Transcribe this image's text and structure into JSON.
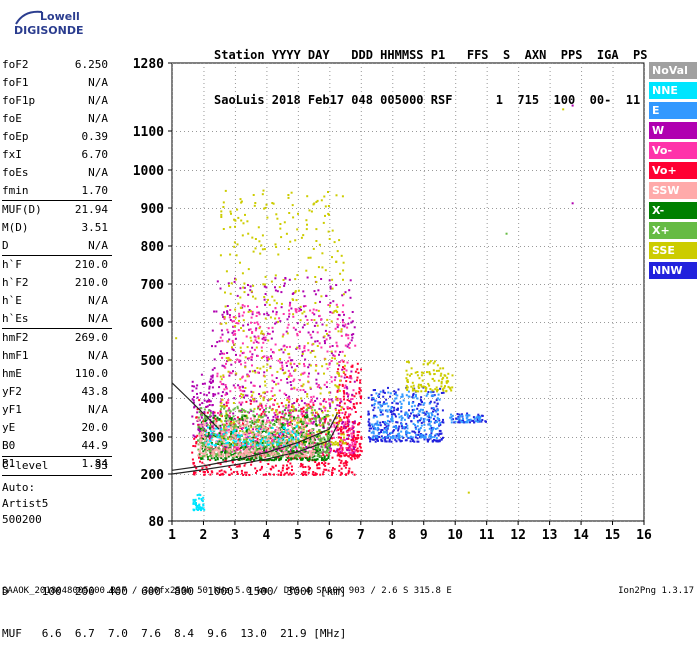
{
  "logo": {
    "line1": "Lowell",
    "line2": "DIGISONDE"
  },
  "header": {
    "line1": "Station YYYY DAY   DDD HHMMSS P1   FFS  S  AXN  PPS  IGA  PS",
    "line2": "SaoLuis 2018 Feb17 048 005000 RSF      1  715  100  00-  11"
  },
  "params_group1": [
    {
      "label": "foF2",
      "value": "6.250"
    },
    {
      "label": "foF1",
      "value": "N/A"
    },
    {
      "label": "foF1p",
      "value": "N/A"
    },
    {
      "label": "foE",
      "value": "N/A"
    },
    {
      "label": "foEp",
      "value": "0.39"
    },
    {
      "label": "fxI",
      "value": "6.70"
    },
    {
      "label": "foEs",
      "value": "N/A"
    },
    {
      "label": "fmin",
      "value": "1.70"
    }
  ],
  "params_group2": [
    {
      "label": "MUF(D)",
      "value": "21.94"
    },
    {
      "label": "M(D)",
      "value": "3.51"
    },
    {
      "label": "D",
      "value": "N/A"
    }
  ],
  "params_group3": [
    {
      "label": "h`F",
      "value": "210.0"
    },
    {
      "label": "h`F2",
      "value": "210.0"
    },
    {
      "label": "h`E",
      "value": "N/A"
    },
    {
      "label": "h`Es",
      "value": "N/A"
    }
  ],
  "params_group4": [
    {
      "label": "hmF2",
      "value": "269.0"
    },
    {
      "label": "hmF1",
      "value": "N/A"
    },
    {
      "label": "hmE",
      "value": "110.0"
    },
    {
      "label": "yF2",
      "value": "43.8"
    },
    {
      "label": "yF1",
      "value": "N/A"
    },
    {
      "label": "yE",
      "value": "20.0"
    },
    {
      "label": "B0",
      "value": "44.9"
    },
    {
      "label": "B1",
      "value": "1.84"
    }
  ],
  "clevel": {
    "label": "C-level",
    "value": "33"
  },
  "auto": {
    "line1": "Auto:",
    "line2": "Artist5",
    "line3": "500200"
  },
  "legend": [
    {
      "label": "NoVal",
      "color": "#a0a0a0"
    },
    {
      "label": "NNE",
      "color": "#00e5ff"
    },
    {
      "label": "E",
      "color": "#3399ff"
    },
    {
      "label": "W",
      "color": "#b000b0"
    },
    {
      "label": "Vo-",
      "color": "#ff33aa"
    },
    {
      "label": "Vo+",
      "color": "#ff0033"
    },
    {
      "label": "SSW",
      "color": "#ffaaaa"
    },
    {
      "label": "X-",
      "color": "#008000"
    },
    {
      "label": "X+",
      "color": "#66bb44"
    },
    {
      "label": "SSE",
      "color": "#cccc00"
    },
    {
      "label": "NNW",
      "color": "#2222dd"
    }
  ],
  "dmuf": {
    "d_line": "D     100  200  400  600  800  1000  1500  3000 [km]",
    "muf_line": "MUF   6.6  6.7  7.0  7.6  8.4  9.6  13.0  21.9 [MHz]"
  },
  "footer": {
    "left": "SAAOK_2018048005000.RSF / 300fx256h 50 kHz 5.0 km / DPS-4 SAAOK 903 / 2.6 S 315.8 E",
    "right": "Ion2Png 1.3.17"
  },
  "chart_data": {
    "type": "scatter",
    "x_ticks": [
      1,
      2,
      3,
      4,
      5,
      6,
      7,
      8,
      9,
      10,
      11,
      12,
      13,
      14,
      15,
      16
    ],
    "y_ticks": [
      80,
      200,
      300,
      400,
      500,
      600,
      700,
      800,
      900,
      1000,
      1100,
      1280
    ],
    "xlim": [
      1,
      16
    ],
    "ylim": [
      80,
      1280
    ],
    "grid": true,
    "series": [
      {
        "color": "#ff0033",
        "ranges": [
          {
            "f": [
              1.6,
              6.9
            ],
            "h": [
              200,
              400
            ]
          },
          {
            "f": [
              6.2,
              7.0
            ],
            "h": [
              250,
              500
            ]
          }
        ]
      },
      {
        "color": "#b000b0",
        "ranges": [
          {
            "f": [
              2.2,
              6.8
            ],
            "h": [
              260,
              720
            ]
          },
          {
            "f": [
              1.6,
              2.3
            ],
            "h": [
              300,
              470
            ]
          }
        ]
      },
      {
        "color": "#ff33aa",
        "ranges": [
          {
            "f": [
              2.4,
              6.8
            ],
            "h": [
              260,
              650
            ]
          }
        ]
      },
      {
        "color": "#2222dd",
        "ranges": [
          {
            "f": [
              7.2,
              9.6
            ],
            "h": [
              290,
              430
            ]
          },
          {
            "f": [
              9.9,
              11.0
            ],
            "h": [
              340,
              365
            ]
          }
        ]
      },
      {
        "color": "#3399ff",
        "ranges": [
          {
            "f": [
              7.3,
              9.5
            ],
            "h": [
              300,
              420
            ]
          },
          {
            "f": [
              9.8,
              10.8
            ],
            "h": [
              340,
              360
            ]
          }
        ]
      },
      {
        "color": "#cccc00",
        "ranges": [
          {
            "f": [
              8.4,
              9.9
            ],
            "h": [
              420,
              500
            ]
          },
          {
            "f": [
              2.5,
              6.5
            ],
            "h": [
              280,
              950
            ]
          }
        ]
      },
      {
        "color": "#008000",
        "ranges": [
          {
            "f": [
              1.8,
              6.0
            ],
            "h": [
              240,
              360
            ]
          }
        ]
      },
      {
        "color": "#66bb44",
        "ranges": [
          {
            "f": [
              1.8,
              6.0
            ],
            "h": [
              250,
              380
            ]
          }
        ]
      },
      {
        "color": "#00e5ff",
        "ranges": [
          {
            "f": [
              1.6,
              2.0
            ],
            "h": [
              110,
              150
            ]
          },
          {
            "f": [
              2.0,
              5.0
            ],
            "h": [
              280,
              330
            ]
          }
        ]
      },
      {
        "color": "#ffaaaa",
        "ranges": [
          {
            "f": [
              1.8,
              5.5
            ],
            "h": [
              250,
              350
            ]
          }
        ]
      }
    ],
    "trace_lines": [
      {
        "x": [
          1,
          2,
          3,
          4,
          5,
          6,
          6.25
        ],
        "y": [
          200,
          212,
          225,
          240,
          260,
          290,
          330
        ]
      },
      {
        "x": [
          1,
          2,
          3,
          4,
          5,
          6,
          6.25
        ],
        "y": [
          210,
          222,
          238,
          258,
          285,
          320,
          360
        ]
      },
      {
        "x": [
          1,
          1.5,
          2.0,
          2.5
        ],
        "y": [
          440,
          400,
          360,
          320
        ]
      }
    ],
    "isolated_points": [
      {
        "x": 13.7,
        "y": 1170,
        "color": "#b000b0"
      },
      {
        "x": 13.4,
        "y": 1160,
        "color": "#cccc00"
      },
      {
        "x": 13.7,
        "y": 915,
        "color": "#b000b0"
      },
      {
        "x": 11.6,
        "y": 835,
        "color": "#66bb44"
      },
      {
        "x": 10.4,
        "y": 155,
        "color": "#cccc00"
      },
      {
        "x": 1.1,
        "y": 560,
        "color": "#cccc00"
      }
    ]
  }
}
